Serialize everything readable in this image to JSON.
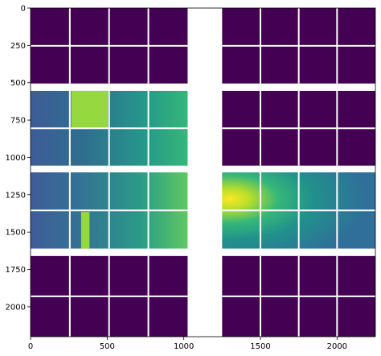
{
  "chart_data": {
    "type": "heatmap",
    "title": "",
    "xlabel": "",
    "ylabel": "",
    "xlim": [
      0,
      2250
    ],
    "ylim": [
      2200,
      0
    ],
    "y_axis_inverted": true,
    "colormap": "viridis",
    "xticks": [
      0,
      500,
      1000,
      1500,
      2000
    ],
    "yticks": [
      0,
      250,
      500,
      750,
      1000,
      1250,
      1500,
      1750,
      2000
    ],
    "colors": {
      "empty_module": "#440154",
      "gap": "#ffffff",
      "hot_pixels": "#95d840",
      "bright_center": "#fde725",
      "detector_background": "#3b6ea5"
    },
    "panel_grid": {
      "columns_x": [
        [
          0,
          1025
        ],
        [
          1250,
          2250
        ]
      ],
      "rows_y": [
        [
          0,
          505
        ],
        [
          555,
          1055
        ],
        [
          1100,
          1610
        ],
        [
          1660,
          2200
        ]
      ],
      "subpanel_columns": 4,
      "subpanel_rows": 2
    },
    "empty_panels": [
      {
        "col": 0,
        "row": 0
      },
      {
        "col": 1,
        "row": 0
      },
      {
        "col": 1,
        "row": 1
      },
      {
        "col": 0,
        "row": 3
      },
      {
        "col": 1,
        "row": 3
      }
    ],
    "hot_regions": [
      {
        "x": [
          265,
          505
        ],
        "y": [
          555,
          800
        ]
      },
      {
        "x": [
          330,
          385
        ],
        "y": [
          1365,
          1610
        ]
      }
    ],
    "bright_center": {
      "x": 1280,
      "y": 1240
    }
  }
}
